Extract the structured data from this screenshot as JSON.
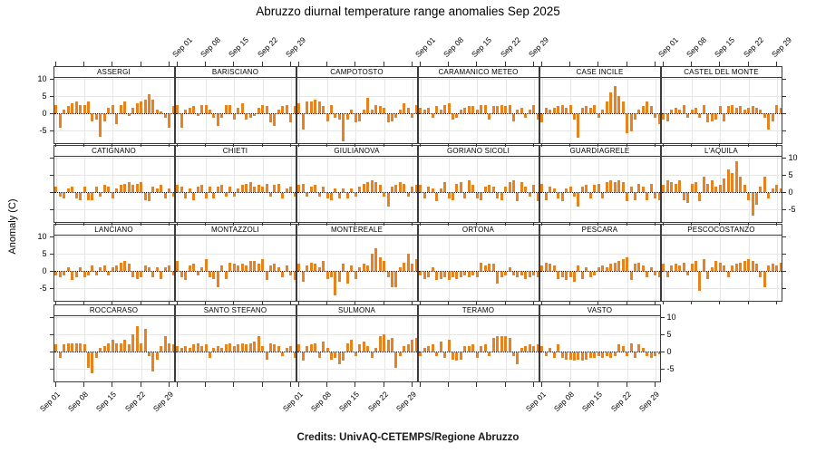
{
  "title": "Abruzzo diurnal temperature range anomalies Sep 2025",
  "credits": "Credits: UnivAQ-CETEMPS/Regione Abruzzo",
  "y_axis_title": "Anomaly (C)",
  "colors": {
    "bar": "#E8821E",
    "grid": "#E7E7E7",
    "frame": "#3C3C3C",
    "zero_line": "#111111",
    "text": "#000000"
  },
  "chart_data": {
    "type": "bar",
    "title": "Abruzzo diurnal temperature range anomalies Sep 2025",
    "xlabel": "",
    "ylabel": "Anomaly (C)",
    "x_unit": "day of September 2025",
    "x_days": 30,
    "x_tick_days": [
      1,
      8,
      15,
      22,
      29
    ],
    "x_tick_labels": [
      "Sep 01",
      "Sep 08",
      "Sep 15",
      "Sep 22",
      "Sep 29"
    ],
    "y_ticks": [
      -5,
      0,
      5,
      10
    ],
    "ylim": [
      -9,
      10.3
    ],
    "grid": true,
    "layout": {
      "columns": 6,
      "rows": 4,
      "panels_per_row": [
        6,
        6,
        6,
        5
      ],
      "top_label_columns": [
        2,
        4,
        6
      ],
      "bottom_label_columns": [
        1,
        3,
        5
      ],
      "left_label_rows": [
        1,
        3
      ],
      "right_label_rows": [
        2,
        4
      ]
    },
    "panels": [
      {
        "name": "ASSERGI",
        "values": [
          2.5,
          -4,
          1,
          2,
          3,
          3.5,
          2.5,
          2.5,
          3.5,
          -2,
          -1.5,
          -6.5,
          -2,
          1.5,
          2.5,
          -3,
          2.5,
          3.5,
          -0.5,
          1.5,
          3,
          3.5,
          4,
          5.5,
          4,
          1,
          0.5,
          -1,
          -4,
          2
        ]
      },
      {
        "name": "BARISCIANO",
        "values": [
          2.5,
          -4,
          1,
          1.5,
          2,
          -0.5,
          2.5,
          2.5,
          1,
          -1,
          -3.5,
          -1,
          2.5,
          2.5,
          -1.5,
          1.5,
          3,
          -1.5,
          -1,
          -0.5,
          1.5,
          2.5,
          2,
          -2.5,
          -3.5,
          1,
          2,
          2.5,
          -2.5,
          2
        ]
      },
      {
        "name": "CAMPOTOSTO",
        "values": [
          3,
          -4.5,
          3.5,
          3.5,
          4,
          3.5,
          2,
          -2,
          2.5,
          -1,
          -1.5,
          -8,
          -1.5,
          1,
          -2.5,
          -2,
          1,
          4.5,
          1,
          2.5,
          2,
          1.5,
          -2.5,
          -2,
          -1,
          1,
          3,
          1.5,
          -1,
          2.5
        ]
      },
      {
        "name": "CARAMANICO METEO",
        "values": [
          1.5,
          1,
          1.5,
          -1,
          2,
          1,
          2.5,
          3,
          -1.5,
          -1,
          1,
          1.5,
          2,
          2,
          1,
          2.5,
          2.5,
          -1.5,
          2,
          2,
          2.5,
          2,
          2.5,
          -2,
          1,
          1.5,
          -1,
          1,
          2.5,
          -1.5
        ]
      },
      {
        "name": "CASE INCILE",
        "values": [
          -2.5,
          1.5,
          1,
          1.5,
          2,
          2.5,
          1.5,
          2.5,
          -1.5,
          -7,
          1.5,
          2,
          1.5,
          2.5,
          -1,
          1,
          3.5,
          6,
          8,
          5,
          3.5,
          -5.5,
          -5,
          -1.5,
          1,
          2,
          3.5,
          2,
          -1,
          -3
        ]
      },
      {
        "name": "CASTEL DEL MONTE",
        "values": [
          -1.5,
          -2,
          1,
          1.5,
          1,
          2.5,
          -1,
          1,
          1.5,
          -1,
          2.5,
          -2.5,
          -2,
          -1.5,
          2,
          -2,
          2,
          2.5,
          1.5,
          2,
          1,
          1.5,
          2,
          1.5,
          1,
          -1,
          -4.5,
          -2,
          2.5,
          1.5
        ]
      },
      {
        "name": "CATIGNANO",
        "values": [
          1.5,
          -1,
          -1.5,
          1,
          1.5,
          -1.5,
          -2,
          1.5,
          -2,
          -2,
          1.5,
          -1,
          2,
          1.5,
          -1.5,
          1,
          2,
          2.5,
          3,
          2,
          2.5,
          3,
          -2,
          -2.5,
          1.5,
          1,
          2,
          -1.5,
          1,
          -1
        ]
      },
      {
        "name": "CHIETI",
        "values": [
          2,
          1.5,
          -1.5,
          1,
          -2,
          1.5,
          2,
          -1.5,
          1.5,
          -1.5,
          1.5,
          2,
          -1,
          1.5,
          -1,
          1,
          2,
          2.5,
          3,
          1.5,
          2,
          1.5,
          2.5,
          -1,
          2,
          2.5,
          -1.5,
          1,
          1.5,
          -1
        ]
      },
      {
        "name": "GIULIANOVA",
        "values": [
          2,
          2.5,
          -1,
          1.5,
          2,
          -1,
          1.5,
          -1.5,
          -2,
          1,
          -1.5,
          1,
          -1.5,
          1,
          -1,
          1.5,
          2.5,
          3,
          3.5,
          3,
          2,
          -1,
          -4,
          1.5,
          2,
          3,
          2.5,
          -1,
          1.5,
          2
        ]
      },
      {
        "name": "GORIANO SICOLI",
        "values": [
          2,
          -1.5,
          1.5,
          1,
          -2.5,
          1,
          3,
          -1.5,
          -2,
          2.5,
          3,
          -1.5,
          3.5,
          2,
          -1.5,
          -2,
          1.5,
          2,
          1.5,
          -1.5,
          -2,
          1.5,
          3,
          3.5,
          -2.5,
          3,
          1.5,
          -1,
          2,
          -2.5
        ]
      },
      {
        "name": "GUARDIAGRELE",
        "values": [
          2.5,
          -2,
          1.5,
          1,
          -1.5,
          -2.5,
          1,
          1.5,
          -1,
          -4,
          1.5,
          2,
          -1.5,
          2,
          2.5,
          -1.5,
          3,
          3.5,
          3,
          3.5,
          3,
          -2.5,
          1.5,
          -2,
          2.5,
          1.5,
          -2,
          2.5,
          -1.5,
          -2
        ]
      },
      {
        "name": "L'AQUILA",
        "values": [
          2,
          3.5,
          3,
          2.5,
          3.5,
          -2,
          -3,
          2.5,
          3,
          -2.5,
          4.5,
          2.5,
          3.5,
          1.5,
          2,
          4,
          6.5,
          5.5,
          9,
          4.5,
          2,
          -2,
          -6.5,
          -3.5,
          1.5,
          4.5,
          -1.5,
          1,
          2,
          1
        ]
      },
      {
        "name": "LANCIANO",
        "values": [
          -1,
          -1.5,
          -1,
          1,
          -2.5,
          -1.5,
          1,
          -1.5,
          -1,
          1.5,
          -1,
          1,
          1.5,
          -1,
          1,
          1.5,
          2.5,
          3,
          2,
          -1.5,
          -2,
          -1.5,
          1.5,
          1,
          -1.5,
          1,
          -2,
          1,
          1.5,
          -1
        ]
      },
      {
        "name": "MONTAZZOLI",
        "values": [
          3,
          -1.5,
          -2.5,
          1.5,
          2,
          -1,
          1,
          3.5,
          -1.5,
          -2,
          -4.5,
          1.5,
          -2,
          2.5,
          2,
          1.5,
          2,
          1.5,
          3,
          3,
          2,
          3.5,
          -2.5,
          1.5,
          2,
          1,
          -1.5,
          1.5,
          -1,
          -2.5
        ]
      },
      {
        "name": "MONTEREALE",
        "values": [
          2,
          -3,
          1.5,
          2.5,
          2,
          1,
          3,
          -2,
          -1.5,
          -7,
          -3,
          2,
          -3.5,
          1.5,
          -2,
          1,
          2,
          1.5,
          5,
          6.5,
          4,
          3,
          -1.5,
          -4.5,
          -4.5,
          1,
          2.5,
          5,
          2,
          3.5
        ]
      },
      {
        "name": "ORTONA",
        "values": [
          -1,
          -2,
          -1.5,
          1,
          -2.5,
          -2,
          -1.5,
          -2.5,
          -1.5,
          -2,
          -1.5,
          -1,
          -1.5,
          -1,
          -1.5,
          2.5,
          1.5,
          2,
          2,
          -3.5,
          -1.5,
          -1,
          1,
          -1,
          -1.5,
          -1,
          -2,
          -1.5,
          -1,
          -1.5
        ]
      },
      {
        "name": "PESCARA",
        "values": [
          1.5,
          2.5,
          2,
          1.5,
          -2,
          -1.5,
          -2.5,
          -1.5,
          -3,
          1.5,
          -2,
          1,
          -1.5,
          -1,
          1,
          1.5,
          1,
          2,
          2.5,
          3,
          3.5,
          4,
          -2.5,
          2,
          2.5,
          1.5,
          -1.5,
          1,
          -1,
          -1.5
        ]
      },
      {
        "name": "PESCOCOSTANZO",
        "values": [
          2,
          -1.5,
          1.5,
          2,
          1.5,
          2.5,
          -1,
          2,
          3,
          -5.5,
          3.5,
          -2,
          1,
          3,
          2.5,
          1.5,
          -1.5,
          1.5,
          2,
          2.5,
          3,
          3.5,
          3,
          2,
          -1.5,
          -4.5,
          1.5,
          2,
          1.5,
          2.5
        ]
      },
      {
        "name": "ROCCARASO",
        "values": [
          2,
          -1.5,
          2,
          2.5,
          2.5,
          2.5,
          2.5,
          2,
          -4.5,
          -6,
          -1.5,
          1,
          1.5,
          2.5,
          3.5,
          2.5,
          2.5,
          3.5,
          2,
          5,
          7.5,
          2.5,
          6.5,
          -1,
          -5.5,
          -2,
          1.5,
          4.5,
          2.5,
          2
        ]
      },
      {
        "name": "SANTO STEFANO",
        "values": [
          1.5,
          1,
          1.5,
          1,
          2,
          2.5,
          1.5,
          2,
          -1.5,
          1,
          1.5,
          1,
          2,
          2.5,
          1.5,
          2,
          2.5,
          2,
          2.5,
          3,
          4.5,
          1.5,
          -2,
          2.5,
          2,
          1.5,
          -1,
          1,
          1.5,
          -1.5
        ]
      },
      {
        "name": "SULMONA",
        "values": [
          2,
          -2.5,
          1.5,
          2,
          2.5,
          -1.5,
          3,
          1,
          -2,
          -1.5,
          -3.5,
          -2.5,
          2.5,
          3.5,
          -1,
          2,
          3,
          1.5,
          -1.5,
          1,
          4.5,
          5,
          3.5,
          4,
          -4.5,
          -1,
          1.5,
          2,
          3.5,
          4
        ]
      },
      {
        "name": "TERAMO",
        "values": [
          -1,
          1,
          1.5,
          2,
          -1,
          3,
          -1.5,
          3.5,
          -2,
          -2.5,
          -2,
          1.5,
          1.5,
          2,
          -1.5,
          1.5,
          2,
          -1,
          4,
          4.5,
          4.5,
          4.5,
          4,
          -1,
          -3.5,
          1,
          1.5,
          2,
          1.5,
          2
        ]
      },
      {
        "name": "VASTO",
        "values": [
          1.5,
          -1,
          1,
          -1.5,
          2,
          -1.5,
          -2,
          -2,
          -2.5,
          -2,
          -2.5,
          -2,
          -1.5,
          -1.5,
          -1,
          -1.5,
          -1,
          -1.5,
          -1,
          2,
          1.5,
          -1,
          2.5,
          -1.5,
          2,
          1,
          -1,
          -1.5,
          -1,
          -0.5
        ]
      }
    ]
  }
}
